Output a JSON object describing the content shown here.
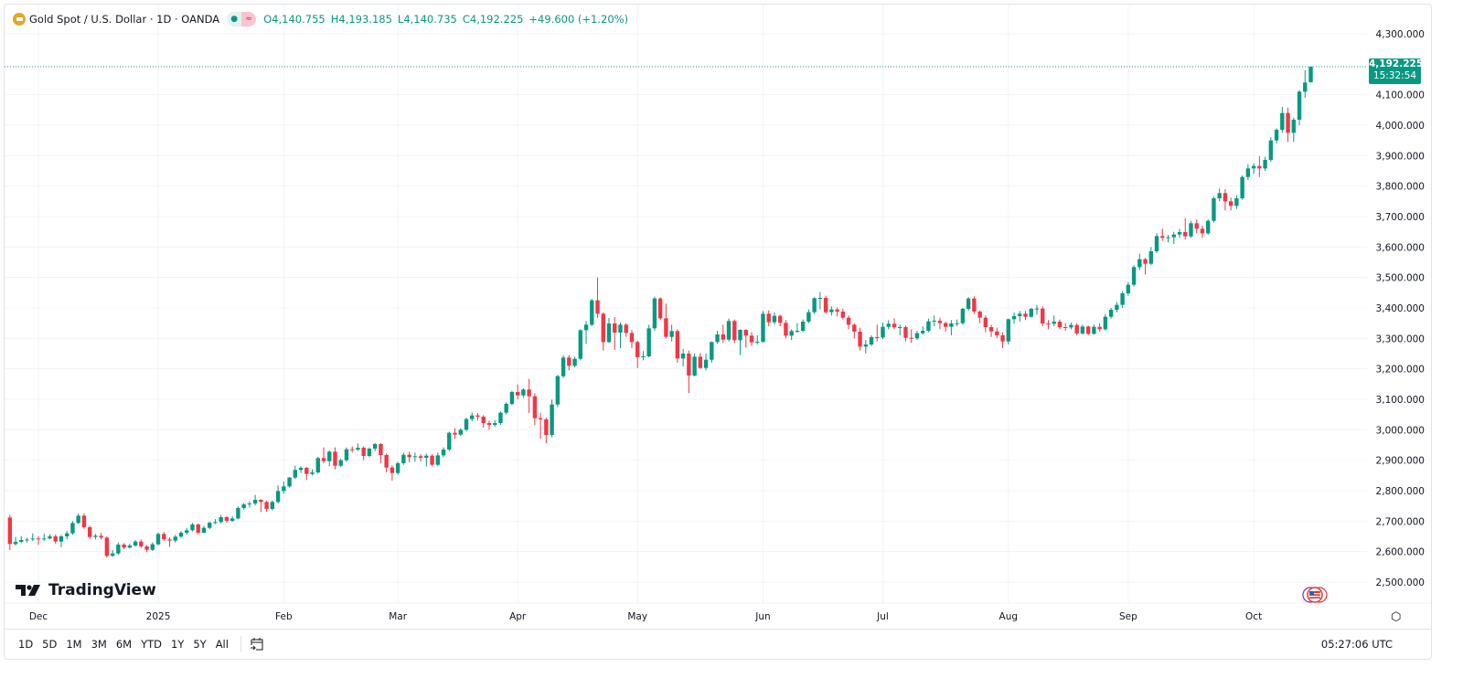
{
  "legend": {
    "symbol": "Gold Spot / U.S. Dollar · 1D · OANDA",
    "open": "O4,140.755",
    "high": "H4,193.185",
    "low": "L4,140.735",
    "close": "C4,192.225",
    "change": "+49.600 (+1.20%)"
  },
  "last_price": {
    "value": "4,192.225",
    "countdown": "15:32:54"
  },
  "logo": "TradingView",
  "toolbar": {
    "ranges": [
      "1D",
      "5D",
      "1M",
      "3M",
      "6M",
      "YTD",
      "1Y",
      "5Y",
      "All"
    ],
    "clock": "05:27:06 UTC"
  },
  "colors": {
    "up": "#089981",
    "down": "#f23645",
    "grid": "#f0f3fa"
  },
  "chart_data": {
    "type": "candlestick",
    "title": "Gold Spot / U.S. Dollar · 1D · OANDA",
    "ylim": [
      2450,
      4350
    ],
    "grid": true,
    "y_ticks": [
      {
        "value": 2500,
        "label": "2,500.000"
      },
      {
        "value": 2600,
        "label": "2,600.000"
      },
      {
        "value": 2700,
        "label": "2,700.000"
      },
      {
        "value": 2800,
        "label": "2,800.000"
      },
      {
        "value": 2900,
        "label": "2,900.000"
      },
      {
        "value": 3000,
        "label": "3,000.000"
      },
      {
        "value": 3100,
        "label": "3,100.000"
      },
      {
        "value": 3200,
        "label": "3,200.000"
      },
      {
        "value": 3300,
        "label": "3,300.000"
      },
      {
        "value": 3400,
        "label": "3,400.000"
      },
      {
        "value": 3500,
        "label": "3,500.000"
      },
      {
        "value": 3600,
        "label": "3,600.000"
      },
      {
        "value": 3700,
        "label": "3,700.000"
      },
      {
        "value": 3800,
        "label": "3,800.000"
      },
      {
        "value": 3900,
        "label": "3,900.000"
      },
      {
        "value": 4000,
        "label": "4,000.000"
      },
      {
        "value": 4100,
        "label": "4,100.000"
      },
      {
        "value": 4300,
        "label": "4,300.000"
      }
    ],
    "x_ticks": [
      {
        "index": 5,
        "label": "Dec"
      },
      {
        "index": 26,
        "label": "2025"
      },
      {
        "index": 48,
        "label": "Feb"
      },
      {
        "index": 68,
        "label": "Mar"
      },
      {
        "index": 89,
        "label": "Apr"
      },
      {
        "index": 110,
        "label": "May"
      },
      {
        "index": 132,
        "label": "Jun"
      },
      {
        "index": 153,
        "label": "Jul"
      },
      {
        "index": 175,
        "label": "Aug"
      },
      {
        "index": 196,
        "label": "Sep"
      },
      {
        "index": 218,
        "label": "Oct"
      }
    ],
    "last_close": 4192.225,
    "ohlc_fields": [
      "open",
      "high",
      "low",
      "close"
    ],
    "candles": [
      [
        2712,
        2721,
        2605,
        2625
      ],
      [
        2625,
        2648,
        2620,
        2632
      ],
      [
        2632,
        2650,
        2628,
        2638
      ],
      [
        2638,
        2645,
        2630,
        2640
      ],
      [
        2640,
        2660,
        2635,
        2643
      ],
      [
        2643,
        2650,
        2622,
        2640
      ],
      [
        2640,
        2658,
        2635,
        2643
      ],
      [
        2643,
        2657,
        2640,
        2650
      ],
      [
        2650,
        2656,
        2625,
        2633
      ],
      [
        2633,
        2655,
        2615,
        2650
      ],
      [
        2650,
        2668,
        2640,
        2660
      ],
      [
        2660,
        2700,
        2655,
        2694
      ],
      [
        2694,
        2725,
        2690,
        2718
      ],
      [
        2718,
        2726,
        2675,
        2680
      ],
      [
        2680,
        2685,
        2642,
        2648
      ],
      [
        2648,
        2658,
        2640,
        2652
      ],
      [
        2652,
        2662,
        2640,
        2646
      ],
      [
        2646,
        2650,
        2580,
        2586
      ],
      [
        2586,
        2605,
        2583,
        2594
      ],
      [
        2594,
        2630,
        2590,
        2623
      ],
      [
        2623,
        2628,
        2608,
        2613
      ],
      [
        2613,
        2626,
        2610,
        2620
      ],
      [
        2620,
        2638,
        2616,
        2633
      ],
      [
        2633,
        2640,
        2612,
        2617
      ],
      [
        2617,
        2622,
        2598,
        2606
      ],
      [
        2606,
        2630,
        2602,
        2624
      ],
      [
        2624,
        2662,
        2620,
        2658
      ],
      [
        2658,
        2665,
        2635,
        2640
      ],
      [
        2640,
        2647,
        2615,
        2636
      ],
      [
        2636,
        2655,
        2630,
        2649
      ],
      [
        2649,
        2668,
        2645,
        2662
      ],
      [
        2662,
        2678,
        2656,
        2670
      ],
      [
        2670,
        2694,
        2666,
        2689
      ],
      [
        2689,
        2692,
        2656,
        2662
      ],
      [
        2662,
        2684,
        2660,
        2678
      ],
      [
        2678,
        2699,
        2674,
        2695
      ],
      [
        2695,
        2707,
        2690,
        2697
      ],
      [
        2697,
        2720,
        2692,
        2713
      ],
      [
        2713,
        2717,
        2695,
        2701
      ],
      [
        2701,
        2716,
        2697,
        2709
      ],
      [
        2709,
        2748,
        2706,
        2743
      ],
      [
        2743,
        2760,
        2738,
        2755
      ],
      [
        2755,
        2765,
        2745,
        2758
      ],
      [
        2758,
        2786,
        2752,
        2770
      ],
      [
        2770,
        2772,
        2730,
        2763
      ],
      [
        2763,
        2768,
        2730,
        2740
      ],
      [
        2740,
        2768,
        2735,
        2763
      ],
      [
        2763,
        2817,
        2758,
        2799
      ],
      [
        2799,
        2830,
        2790,
        2814
      ],
      [
        2814,
        2845,
        2810,
        2843
      ],
      [
        2843,
        2882,
        2838,
        2868
      ],
      [
        2868,
        2880,
        2858,
        2875
      ],
      [
        2875,
        2878,
        2835,
        2855
      ],
      [
        2855,
        2870,
        2850,
        2860
      ],
      [
        2860,
        2911,
        2856,
        2907
      ],
      [
        2907,
        2942,
        2890,
        2897
      ],
      [
        2897,
        2932,
        2880,
        2928
      ],
      [
        2928,
        2942,
        2870,
        2882
      ],
      [
        2882,
        2906,
        2877,
        2900
      ],
      [
        2900,
        2942,
        2895,
        2936
      ],
      [
        2936,
        2945,
        2925,
        2935
      ],
      [
        2935,
        2955,
        2930,
        2941
      ],
      [
        2941,
        2946,
        2900,
        2914
      ],
      [
        2914,
        2942,
        2910,
        2938
      ],
      [
        2938,
        2956,
        2930,
        2953
      ],
      [
        2953,
        2956,
        2890,
        2917
      ],
      [
        2917,
        2922,
        2860,
        2876
      ],
      [
        2876,
        2883,
        2833,
        2858
      ],
      [
        2858,
        2895,
        2852,
        2890
      ],
      [
        2890,
        2925,
        2885,
        2918
      ],
      [
        2918,
        2928,
        2893,
        2910
      ],
      [
        2910,
        2925,
        2895,
        2913
      ],
      [
        2913,
        2920,
        2896,
        2908
      ],
      [
        2908,
        2922,
        2880,
        2915
      ],
      [
        2915,
        2920,
        2880,
        2885
      ],
      [
        2885,
        2925,
        2880,
        2916
      ],
      [
        2916,
        2942,
        2910,
        2935
      ],
      [
        2935,
        2994,
        2930,
        2990
      ],
      [
        2990,
        3005,
        2970,
        2984
      ],
      [
        2984,
        3005,
        2980,
        3000
      ],
      [
        3000,
        3040,
        2995,
        3035
      ],
      [
        3035,
        3057,
        3028,
        3047
      ],
      [
        3047,
        3055,
        3030,
        3043
      ],
      [
        3043,
        3048,
        3007,
        3022
      ],
      [
        3022,
        3030,
        3000,
        3016
      ],
      [
        3016,
        3032,
        3010,
        3022
      ],
      [
        3022,
        3060,
        3016,
        3056
      ],
      [
        3056,
        3090,
        3050,
        3085
      ],
      [
        3085,
        3128,
        3080,
        3124
      ],
      [
        3124,
        3149,
        3100,
        3113
      ],
      [
        3113,
        3136,
        3105,
        3132
      ],
      [
        3132,
        3167,
        3055,
        3110
      ],
      [
        3110,
        3120,
        3015,
        3038
      ],
      [
        3038,
        3055,
        2970,
        3034
      ],
      [
        3034,
        3040,
        2956,
        2983
      ],
      [
        2983,
        3099,
        2975,
        3083
      ],
      [
        3083,
        3180,
        3075,
        3176
      ],
      [
        3176,
        3245,
        3170,
        3237
      ],
      [
        3237,
        3245,
        3195,
        3210
      ],
      [
        3210,
        3240,
        3205,
        3233
      ],
      [
        3233,
        3330,
        3228,
        3327
      ],
      [
        3327,
        3357,
        3282,
        3345
      ],
      [
        3345,
        3430,
        3340,
        3425
      ],
      [
        3425,
        3500,
        3367,
        3381
      ],
      [
        3381,
        3386,
        3260,
        3288
      ],
      [
        3288,
        3367,
        3285,
        3349
      ],
      [
        3349,
        3370,
        3262,
        3319
      ],
      [
        3319,
        3352,
        3268,
        3345
      ],
      [
        3345,
        3350,
        3305,
        3318
      ],
      [
        3318,
        3328,
        3268,
        3288
      ],
      [
        3288,
        3292,
        3202,
        3238
      ],
      [
        3238,
        3258,
        3228,
        3241
      ],
      [
        3241,
        3345,
        3238,
        3333
      ],
      [
        3333,
        3437,
        3325,
        3431
      ],
      [
        3431,
        3435,
        3360,
        3366
      ],
      [
        3366,
        3414,
        3300,
        3305
      ],
      [
        3305,
        3345,
        3290,
        3324
      ],
      [
        3324,
        3330,
        3220,
        3234
      ],
      [
        3234,
        3265,
        3208,
        3250
      ],
      [
        3250,
        3260,
        3120,
        3178
      ],
      [
        3178,
        3250,
        3175,
        3240
      ],
      [
        3240,
        3252,
        3200,
        3203
      ],
      [
        3203,
        3250,
        3195,
        3230
      ],
      [
        3230,
        3290,
        3220,
        3288
      ],
      [
        3288,
        3325,
        3282,
        3313
      ],
      [
        3313,
        3345,
        3285,
        3296
      ],
      [
        3296,
        3365,
        3290,
        3357
      ],
      [
        3357,
        3362,
        3285,
        3294
      ],
      [
        3294,
        3330,
        3245,
        3328
      ],
      [
        3328,
        3330,
        3270,
        3309
      ],
      [
        3309,
        3320,
        3275,
        3287
      ],
      [
        3287,
        3310,
        3280,
        3289
      ],
      [
        3289,
        3390,
        3285,
        3381
      ],
      [
        3381,
        3392,
        3340,
        3353
      ],
      [
        3353,
        3385,
        3345,
        3374
      ],
      [
        3374,
        3378,
        3340,
        3351
      ],
      [
        3351,
        3360,
        3300,
        3309
      ],
      [
        3309,
        3330,
        3295,
        3324
      ],
      [
        3324,
        3350,
        3318,
        3325
      ],
      [
        3325,
        3362,
        3320,
        3355
      ],
      [
        3355,
        3395,
        3350,
        3386
      ],
      [
        3386,
        3435,
        3380,
        3432
      ],
      [
        3432,
        3452,
        3395,
        3433
      ],
      [
        3433,
        3440,
        3380,
        3386
      ],
      [
        3386,
        3405,
        3375,
        3395
      ],
      [
        3395,
        3402,
        3372,
        3388
      ],
      [
        3388,
        3398,
        3362,
        3368
      ],
      [
        3368,
        3375,
        3330,
        3345
      ],
      [
        3345,
        3350,
        3300,
        3322
      ],
      [
        3322,
        3335,
        3260,
        3273
      ],
      [
        3273,
        3295,
        3250,
        3280
      ],
      [
        3280,
        3310,
        3275,
        3304
      ],
      [
        3304,
        3345,
        3290,
        3303
      ],
      [
        3303,
        3352,
        3298,
        3338
      ],
      [
        3338,
        3360,
        3330,
        3348
      ],
      [
        3348,
        3366,
        3330,
        3336
      ],
      [
        3336,
        3345,
        3310,
        3337
      ],
      [
        3337,
        3342,
        3290,
        3302
      ],
      [
        3302,
        3330,
        3285,
        3300
      ],
      [
        3300,
        3325,
        3295,
        3317
      ],
      [
        3317,
        3340,
        3312,
        3325
      ],
      [
        3325,
        3365,
        3320,
        3356
      ],
      [
        3356,
        3375,
        3340,
        3358
      ],
      [
        3358,
        3368,
        3330,
        3350
      ],
      [
        3350,
        3355,
        3322,
        3338
      ],
      [
        3338,
        3360,
        3310,
        3349
      ],
      [
        3349,
        3362,
        3340,
        3350
      ],
      [
        3350,
        3400,
        3345,
        3397
      ],
      [
        3397,
        3436,
        3390,
        3431
      ],
      [
        3431,
        3438,
        3380,
        3388
      ],
      [
        3388,
        3392,
        3350,
        3368
      ],
      [
        3368,
        3375,
        3320,
        3337
      ],
      [
        3337,
        3345,
        3305,
        3323
      ],
      [
        3323,
        3335,
        3300,
        3310
      ],
      [
        3310,
        3320,
        3268,
        3290
      ],
      [
        3290,
        3365,
        3280,
        3363
      ],
      [
        3363,
        3385,
        3348,
        3373
      ],
      [
        3373,
        3390,
        3355,
        3381
      ],
      [
        3381,
        3390,
        3360,
        3371
      ],
      [
        3371,
        3400,
        3368,
        3397
      ],
      [
        3397,
        3410,
        3378,
        3398
      ],
      [
        3398,
        3405,
        3340,
        3349
      ],
      [
        3349,
        3360,
        3330,
        3348
      ],
      [
        3348,
        3375,
        3340,
        3355
      ],
      [
        3355,
        3362,
        3330,
        3337
      ],
      [
        3337,
        3350,
        3325,
        3336
      ],
      [
        3336,
        3352,
        3330,
        3344
      ],
      [
        3344,
        3350,
        3310,
        3316
      ],
      [
        3316,
        3345,
        3312,
        3339
      ],
      [
        3339,
        3342,
        3310,
        3315
      ],
      [
        3315,
        3345,
        3312,
        3338
      ],
      [
        3338,
        3350,
        3322,
        3330
      ],
      [
        3330,
        3380,
        3325,
        3371
      ],
      [
        3371,
        3400,
        3365,
        3394
      ],
      [
        3394,
        3420,
        3385,
        3410
      ],
      [
        3410,
        3455,
        3400,
        3448
      ],
      [
        3448,
        3485,
        3440,
        3476
      ],
      [
        3476,
        3540,
        3470,
        3534
      ],
      [
        3534,
        3578,
        3525,
        3560
      ],
      [
        3560,
        3565,
        3510,
        3545
      ],
      [
        3545,
        3600,
        3540,
        3586
      ],
      [
        3586,
        3645,
        3580,
        3636
      ],
      [
        3636,
        3660,
        3620,
        3630
      ],
      [
        3630,
        3640,
        3615,
        3632
      ],
      [
        3632,
        3650,
        3610,
        3641
      ],
      [
        3641,
        3660,
        3630,
        3649
      ],
      [
        3649,
        3695,
        3625,
        3635
      ],
      [
        3635,
        3685,
        3630,
        3678
      ],
      [
        3678,
        3690,
        3645,
        3660
      ],
      [
        3660,
        3670,
        3630,
        3645
      ],
      [
        3645,
        3690,
        3640,
        3686
      ],
      [
        3686,
        3765,
        3680,
        3760
      ],
      [
        3760,
        3792,
        3750,
        3777
      ],
      [
        3777,
        3790,
        3720,
        3750
      ],
      [
        3750,
        3762,
        3720,
        3735
      ],
      [
        3735,
        3770,
        3725,
        3760
      ],
      [
        3760,
        3835,
        3755,
        3830
      ],
      [
        3830,
        3872,
        3820,
        3858
      ],
      [
        3858,
        3875,
        3840,
        3866
      ],
      [
        3866,
        3898,
        3830,
        3858
      ],
      [
        3858,
        3896,
        3850,
        3886
      ],
      [
        3886,
        3960,
        3880,
        3950
      ],
      [
        3950,
        3990,
        3940,
        3985
      ],
      [
        3985,
        4060,
        3975,
        4040
      ],
      [
        4040,
        4058,
        3945,
        3975
      ],
      [
        3975,
        4025,
        3945,
        4018
      ],
      [
        4018,
        4115,
        4000,
        4110
      ],
      [
        4110,
        4180,
        4090,
        4140
      ],
      [
        4140.755,
        4193.185,
        4140.735,
        4192.225
      ]
    ]
  }
}
